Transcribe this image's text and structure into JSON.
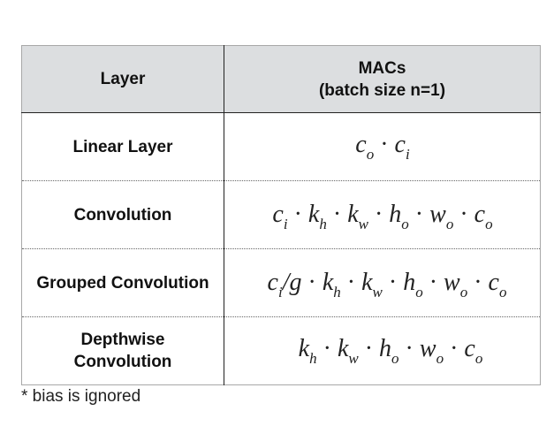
{
  "table": {
    "header": {
      "layer": "Layer",
      "macs_line1": "MACs",
      "macs_line2": "(batch size n=1)"
    },
    "rows": [
      {
        "layer": "Linear Layer",
        "formula": "co · ci"
      },
      {
        "layer": "Convolution",
        "formula": "ci · kh · kw · ho · wo · co"
      },
      {
        "layer": "Grouped Convolution",
        "formula": "ci/g · kh · kw · ho · wo · co"
      },
      {
        "layer_line1": "Depthwise",
        "layer_line2": "Convolution",
        "formula": "kh · kw · ho · wo · co"
      }
    ]
  },
  "footnote": "* bias is ignored"
}
